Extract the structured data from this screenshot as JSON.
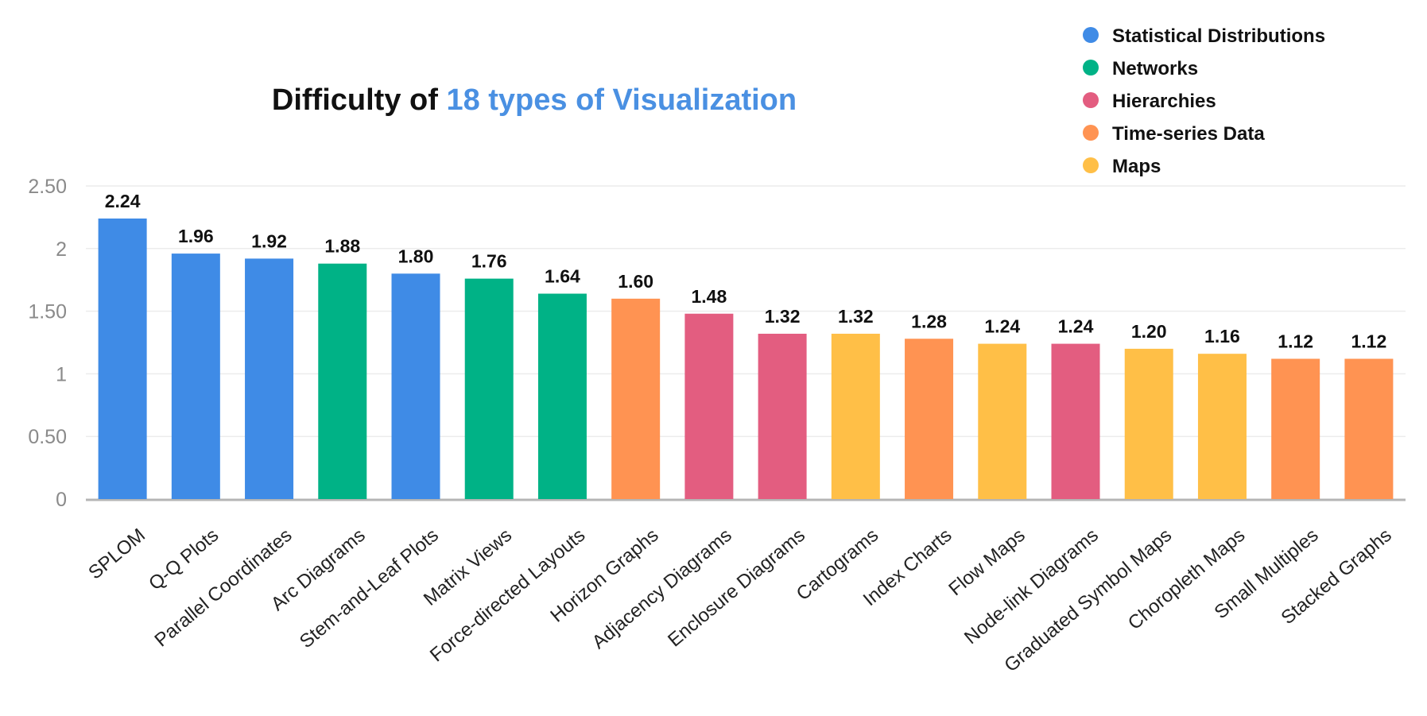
{
  "chart_data": {
    "type": "bar",
    "title": {
      "prefix": "Difficulty of ",
      "highlight": "18 types of Visualization",
      "highlight_color": "#4a90e2"
    },
    "xlabel": "",
    "ylabel": "",
    "ylim": [
      0,
      2.5
    ],
    "yticks": [
      {
        "value": 0,
        "label": "0"
      },
      {
        "value": 0.5,
        "label": "0.50"
      },
      {
        "value": 1,
        "label": "1"
      },
      {
        "value": 1.5,
        "label": "1.50"
      },
      {
        "value": 2,
        "label": "2"
      },
      {
        "value": 2.5,
        "label": "2.50"
      }
    ],
    "grid": true,
    "legend_position": "top-right",
    "legend": [
      {
        "name": "Statistical Distributions",
        "color": "#3f8be6"
      },
      {
        "name": "Networks",
        "color": "#00b286"
      },
      {
        "name": "Hierarchies",
        "color": "#e35d80"
      },
      {
        "name": "Time-series Data",
        "color": "#ff9352"
      },
      {
        "name": "Maps",
        "color": "#ffbf47"
      }
    ],
    "bars": [
      {
        "category": "SPLOM",
        "value": 2.24,
        "label": "2.24",
        "group": "Statistical Distributions"
      },
      {
        "category": "Q-Q Plots",
        "value": 1.96,
        "label": "1.96",
        "group": "Statistical Distributions"
      },
      {
        "category": "Parallel Coordinates",
        "value": 1.92,
        "label": "1.92",
        "group": "Statistical Distributions"
      },
      {
        "category": "Arc Diagrams",
        "value": 1.88,
        "label": "1.88",
        "group": "Networks"
      },
      {
        "category": "Stem-and-Leaf Plots",
        "value": 1.8,
        "label": "1.80",
        "group": "Statistical Distributions"
      },
      {
        "category": "Matrix Views",
        "value": 1.76,
        "label": "1.76",
        "group": "Networks"
      },
      {
        "category": "Force-directed Layouts",
        "value": 1.64,
        "label": "1.64",
        "group": "Networks"
      },
      {
        "category": "Horizon Graphs",
        "value": 1.6,
        "label": "1.60",
        "group": "Time-series Data"
      },
      {
        "category": "Adjacency Diagrams",
        "value": 1.48,
        "label": "1.48",
        "group": "Hierarchies"
      },
      {
        "category": "Enclosure Diagrams",
        "value": 1.32,
        "label": "1.32",
        "group": "Hierarchies"
      },
      {
        "category": "Cartograms",
        "value": 1.32,
        "label": "1.32",
        "group": "Maps"
      },
      {
        "category": "Index Charts",
        "value": 1.28,
        "label": "1.28",
        "group": "Time-series Data"
      },
      {
        "category": "Flow Maps",
        "value": 1.24,
        "label": "1.24",
        "group": "Maps"
      },
      {
        "category": "Node-link Diagrams",
        "value": 1.24,
        "label": "1.24",
        "group": "Hierarchies"
      },
      {
        "category": "Graduated Symbol Maps",
        "value": 1.2,
        "label": "1.20",
        "group": "Maps"
      },
      {
        "category": "Choropleth Maps",
        "value": 1.16,
        "label": "1.16",
        "group": "Maps"
      },
      {
        "category": "Small Multiples",
        "value": 1.12,
        "label": "1.12",
        "group": "Time-series Data"
      },
      {
        "category": "Stacked Graphs",
        "value": 1.12,
        "label": "1.12",
        "group": "Time-series Data"
      }
    ]
  }
}
